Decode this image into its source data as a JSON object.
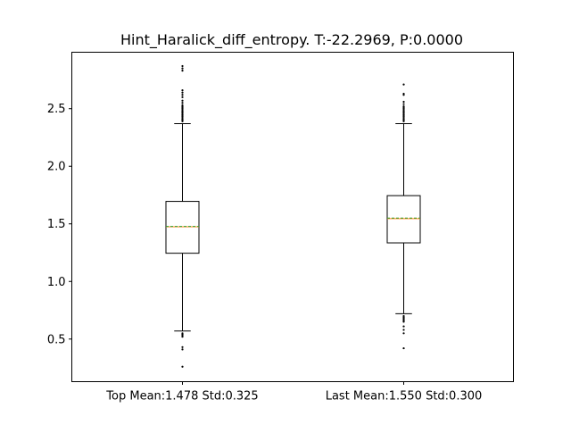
{
  "chart_data": {
    "type": "box",
    "title": "Hint_Haralick_diff_entropy. T:-22.2969, P:0.0000",
    "xlabel": "",
    "ylabel": "",
    "ylim": [
      0.13,
      2.99
    ],
    "yticks": [
      "0.5",
      "1.0",
      "1.5",
      "2.0",
      "2.5"
    ],
    "categories": [
      "Top Mean:1.478 Std:0.325",
      "Last Mean:1.550 Std:0.300"
    ],
    "boxes": [
      {
        "q1": 1.245,
        "median": 1.475,
        "mean": 1.478,
        "q3": 1.695,
        "whisker_low": 0.57,
        "whisker_high": 2.37,
        "outliers": [
          0.26,
          0.41,
          0.43,
          0.52,
          0.53,
          0.54,
          0.55,
          2.39,
          2.4,
          2.41,
          2.42,
          2.43,
          2.44,
          2.45,
          2.46,
          2.47,
          2.48,
          2.49,
          2.5,
          2.51,
          2.52,
          2.53,
          2.55,
          2.57,
          2.6,
          2.62,
          2.64,
          2.66,
          2.83,
          2.85,
          2.87
        ]
      },
      {
        "q1": 1.335,
        "median": 1.545,
        "mean": 1.55,
        "q3": 1.745,
        "whisker_low": 0.72,
        "whisker_high": 2.37,
        "outliers": [
          0.42,
          0.55,
          0.58,
          0.61,
          0.65,
          0.66,
          0.67,
          0.68,
          0.69,
          0.7,
          2.39,
          2.4,
          2.41,
          2.42,
          2.43,
          2.44,
          2.45,
          2.46,
          2.47,
          2.48,
          2.49,
          2.5,
          2.51,
          2.52,
          2.54,
          2.56,
          2.62,
          2.63,
          2.71
        ]
      }
    ],
    "colors": {
      "box": "#000000",
      "median": "#ff7f0e",
      "mean": "#2ca02c",
      "outlier": "#000000"
    }
  }
}
